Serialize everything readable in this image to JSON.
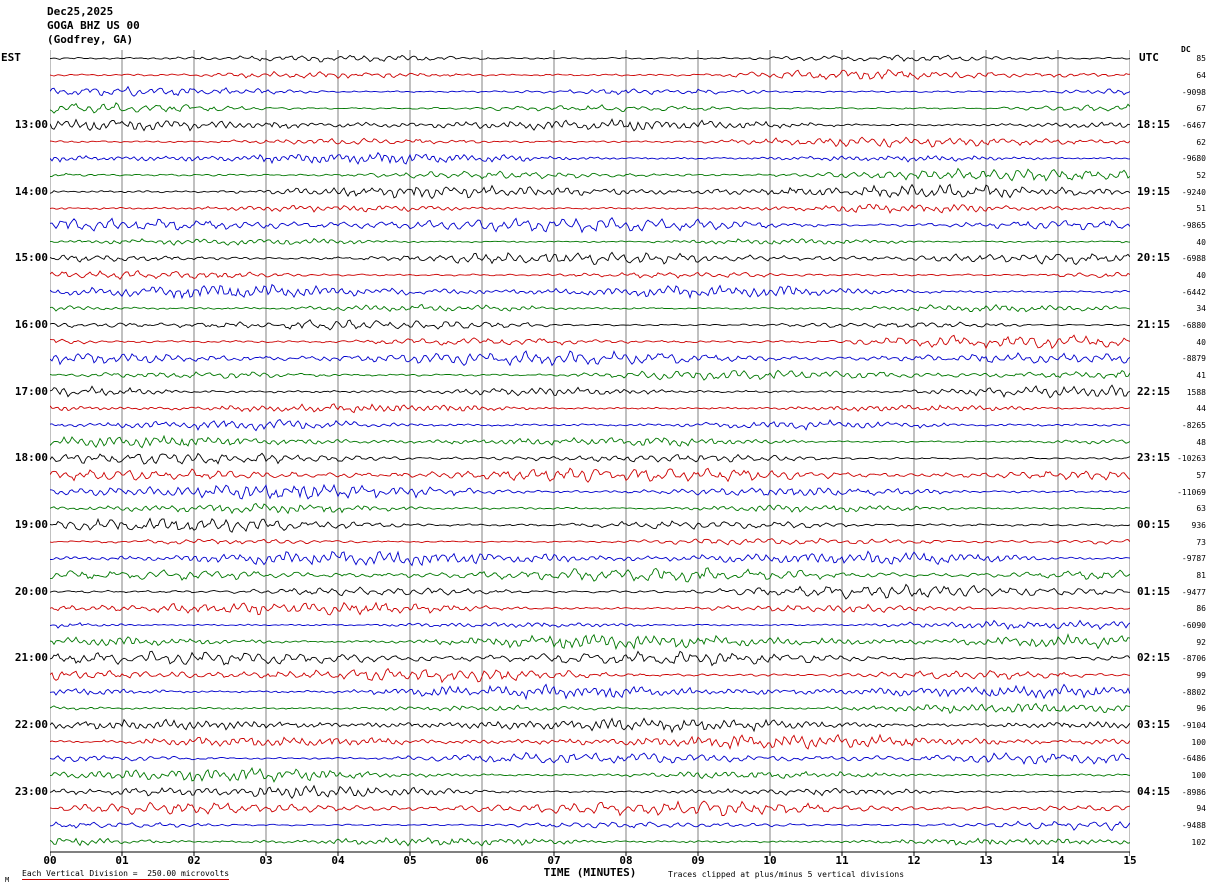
{
  "header": {
    "date": "Dec25,2025",
    "station": "GOGA BHZ US 00",
    "location": "(Godfrey, GA)"
  },
  "axes": {
    "left_header": "EST",
    "right_header": "UTC",
    "dc_header": "DC",
    "left_labels": [
      "13:00",
      "14:00",
      "15:00",
      "16:00",
      "17:00",
      "18:00",
      "19:00",
      "20:00",
      "21:00",
      "22:00",
      "23:00"
    ],
    "right_labels": [
      "18:15",
      "19:15",
      "20:15",
      "21:15",
      "22:15",
      "23:15",
      "00:15",
      "01:15",
      "02:15",
      "03:15",
      "04:15"
    ],
    "x_ticks": [
      "00",
      "01",
      "02",
      "03",
      "04",
      "05",
      "06",
      "07",
      "08",
      "09",
      "10",
      "11",
      "12",
      "13",
      "14",
      "15"
    ],
    "xlabel": "TIME (MINUTES)"
  },
  "dc_values": [
    85,
    64,
    -9098,
    67,
    -6467,
    62,
    -9680,
    52,
    -9240,
    51,
    -9865,
    40,
    -6988,
    40,
    -6442,
    34,
    -6880,
    40,
    -8879,
    41,
    1588,
    44,
    -8265,
    48,
    -10263,
    57,
    -11069,
    63,
    936,
    73,
    -9787,
    81,
    -9477,
    86,
    -6090,
    92,
    -8706,
    99,
    -8802,
    96,
    -9104,
    100,
    -6486,
    100,
    -8986,
    94,
    -9488,
    102
  ],
  "trace_colors": [
    "#000000",
    "#cc0000",
    "#0000cc",
    "#007700"
  ],
  "grid_color": "#808080",
  "footer": {
    "left": "Each Vertical Division =  250.00 microvolts",
    "right": "Traces clipped at plus/minus 5 vertical divisions",
    "mark": "M"
  },
  "chart_data": {
    "type": "line",
    "subtype": "seismogram-helicorder",
    "title": "GOGA BHZ US 00 (Godfrey, GA) Dec25,2025",
    "xlabel": "TIME (MINUTES)",
    "x_range_minutes": [
      0,
      15
    ],
    "minutes_per_row": 15,
    "rows": 48,
    "first_row_start_est": "12:00",
    "left_time_labels_est": [
      "13:00",
      "14:00",
      "15:00",
      "16:00",
      "17:00",
      "18:00",
      "19:00",
      "20:00",
      "21:00",
      "22:00",
      "23:00"
    ],
    "right_time_labels_utc": [
      "18:15",
      "19:15",
      "20:15",
      "21:15",
      "22:15",
      "23:15",
      "00:15",
      "01:15",
      "02:15",
      "03:15",
      "04:15"
    ],
    "dc_offsets_per_row": [
      85,
      64,
      -9098,
      67,
      -6467,
      62,
      -9680,
      52,
      -9240,
      51,
      -9865,
      40,
      -6988,
      40,
      -6442,
      34,
      -6880,
      40,
      -8879,
      41,
      1588,
      44,
      -8265,
      48,
      -10263,
      57,
      -11069,
      63,
      936,
      73,
      -9787,
      81,
      -9477,
      86,
      -6090,
      92,
      -8706,
      99,
      -8802,
      96,
      -9104,
      100,
      -6486,
      100,
      -8986,
      94,
      -9488,
      102
    ],
    "scale_note": "Each Vertical Division = 250.00 microvolts",
    "clip_note": "Traces clipped at plus/minus 5 vertical divisions",
    "trace_color_cycle": [
      "black",
      "red",
      "blue",
      "green"
    ],
    "grid": true,
    "legend_position": "none"
  }
}
